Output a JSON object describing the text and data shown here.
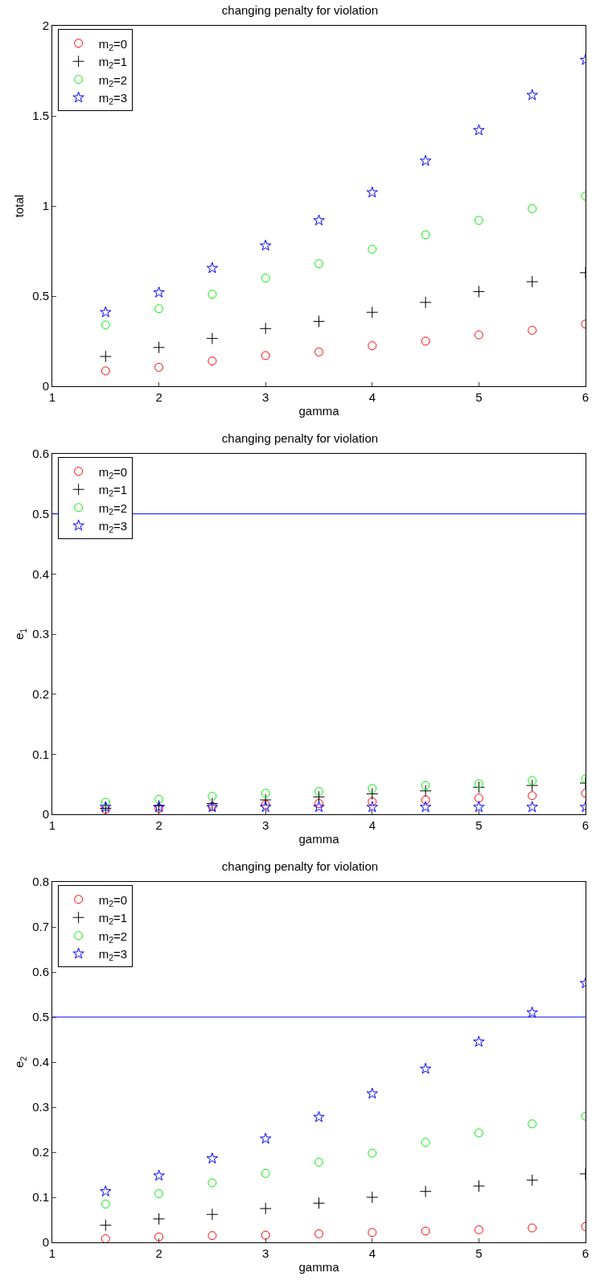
{
  "chart_data": [
    {
      "type": "scatter",
      "title": "changing penalty for violation",
      "xlabel": "gamma",
      "ylabel": "total",
      "x": [
        1.5,
        2,
        2.5,
        3,
        3.5,
        4,
        4.5,
        5,
        5.5,
        6
      ],
      "xlim": [
        1,
        6
      ],
      "xticks": [
        1,
        2,
        3,
        4,
        5,
        6
      ],
      "ylim": [
        0,
        2
      ],
      "yticks": [
        0,
        0.5,
        1,
        1.5,
        2
      ],
      "grid": false,
      "legend": "top left",
      "series": [
        {
          "name": "m$_{2}$=0",
          "color": "#ff0000",
          "marker": "circle",
          "values": [
            0.085,
            0.105,
            0.14,
            0.17,
            0.19,
            0.225,
            0.25,
            0.285,
            0.31,
            0.345
          ]
        },
        {
          "name": "m$_{2}$=1",
          "color": "#000000",
          "marker": "cross",
          "values": [
            0.165,
            0.215,
            0.265,
            0.32,
            0.36,
            0.41,
            0.465,
            0.525,
            0.58,
            0.63
          ]
        },
        {
          "name": "m$_{2}$=2",
          "color": "#00ee00",
          "marker": "circle",
          "values": [
            0.34,
            0.43,
            0.51,
            0.6,
            0.68,
            0.76,
            0.84,
            0.92,
            0.985,
            1.055
          ]
        },
        {
          "name": "m$_{2}$=3",
          "color": "#0000ff",
          "marker": "star",
          "values": [
            0.41,
            0.52,
            0.655,
            0.78,
            0.92,
            1.075,
            1.25,
            1.42,
            1.615,
            1.81
          ]
        }
      ]
    },
    {
      "type": "scatter",
      "title": "changing penalty for violation",
      "xlabel": "gamma",
      "ylabel": "e$_{1}$",
      "x": [
        1.5,
        2,
        2.5,
        3,
        3.5,
        4,
        4.5,
        5,
        5.5,
        6
      ],
      "xlim": [
        1,
        6
      ],
      "xticks": [
        1,
        2,
        3,
        4,
        5,
        6
      ],
      "ylim": [
        0,
        0.6
      ],
      "yticks": [
        0,
        0.1,
        0.2,
        0.3,
        0.4,
        0.5,
        0.6
      ],
      "grid": false,
      "legend": "top left",
      "ref_lines": [
        {
          "axis": "y",
          "value": 0.5,
          "color": "#0000ff"
        }
      ],
      "series": [
        {
          "name": "m$_{2}$=0",
          "color": "#ff0000",
          "marker": "circle",
          "values": [
            0.008,
            0.01,
            0.013,
            0.016,
            0.018,
            0.021,
            0.024,
            0.027,
            0.031,
            0.035
          ]
        },
        {
          "name": "m$_{2}$=1",
          "color": "#000000",
          "marker": "cross",
          "values": [
            0.01,
            0.014,
            0.018,
            0.024,
            0.029,
            0.034,
            0.039,
            0.045,
            0.048,
            0.052
          ]
        },
        {
          "name": "m$_{2}$=2",
          "color": "#00ee00",
          "marker": "circle",
          "values": [
            0.02,
            0.025,
            0.03,
            0.035,
            0.038,
            0.043,
            0.048,
            0.051,
            0.056,
            0.059
          ]
        },
        {
          "name": "m$_{2}$=3",
          "color": "#0000ff",
          "marker": "star",
          "values": [
            0.012,
            0.012,
            0.012,
            0.012,
            0.012,
            0.012,
            0.012,
            0.012,
            0.012,
            0.012
          ]
        }
      ]
    },
    {
      "type": "scatter",
      "title": "changing penalty for violation",
      "xlabel": "gamma",
      "ylabel": "e$_{2}$",
      "x": [
        1.5,
        2,
        2.5,
        3,
        3.5,
        4,
        4.5,
        5,
        5.5,
        6
      ],
      "xlim": [
        1,
        6
      ],
      "xticks": [
        1,
        2,
        3,
        4,
        5,
        6
      ],
      "ylim": [
        0,
        0.8
      ],
      "yticks": [
        0,
        0.1,
        0.2,
        0.3,
        0.4,
        0.5,
        0.6,
        0.7,
        0.8
      ],
      "grid": false,
      "legend": "top left",
      "ref_lines": [
        {
          "axis": "y",
          "value": 0.5,
          "color": "#0000ff"
        }
      ],
      "series": [
        {
          "name": "m$_{2}$=0",
          "color": "#ff0000",
          "marker": "circle",
          "values": [
            0.008,
            0.012,
            0.015,
            0.016,
            0.019,
            0.022,
            0.025,
            0.028,
            0.032,
            0.035
          ]
        },
        {
          "name": "m$_{2}$=1",
          "color": "#000000",
          "marker": "cross",
          "values": [
            0.038,
            0.052,
            0.062,
            0.075,
            0.087,
            0.1,
            0.113,
            0.125,
            0.138,
            0.152
          ]
        },
        {
          "name": "m$_{2}$=2",
          "color": "#00ee00",
          "marker": "circle",
          "values": [
            0.085,
            0.108,
            0.132,
            0.153,
            0.178,
            0.198,
            0.222,
            0.243,
            0.263,
            0.28
          ]
        },
        {
          "name": "m$_{2}$=3",
          "color": "#0000ff",
          "marker": "star",
          "values": [
            0.113,
            0.148,
            0.186,
            0.23,
            0.278,
            0.33,
            0.385,
            0.445,
            0.51,
            0.575
          ]
        }
      ]
    }
  ]
}
